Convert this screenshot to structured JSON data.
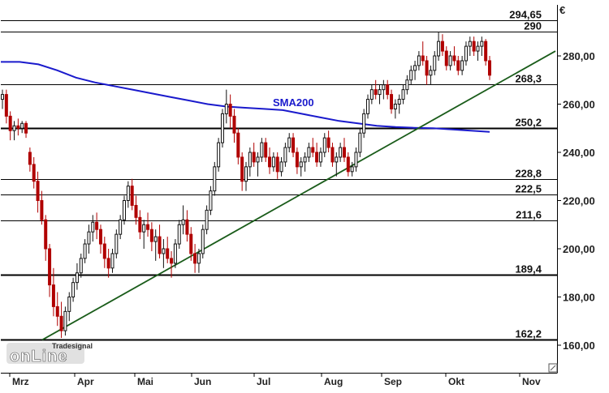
{
  "chart_data": {
    "type": "candlestick",
    "currency_label": "€",
    "ylim": [
      150,
      306
    ],
    "y_ticks": [
      160,
      180,
      200,
      220,
      240,
      260,
      280
    ],
    "y_tick_labels": [
      "160,00",
      "180,00",
      "200,00",
      "220,00",
      "240,00",
      "260,00",
      "280,00"
    ],
    "x_months": [
      "Mrz",
      "Apr",
      "Mai",
      "Jun",
      "Jul",
      "Aug",
      "Sep",
      "Okt",
      "Nov"
    ],
    "levels": [
      {
        "value": 294.65,
        "label": "294,65",
        "bold": false
      },
      {
        "value": 290,
        "label": "290",
        "bold": false
      },
      {
        "value": 268.3,
        "label": "268,3",
        "bold": false
      },
      {
        "value": 250.2,
        "label": "250,2",
        "bold": true
      },
      {
        "value": 228.8,
        "label": "228,8",
        "bold": false
      },
      {
        "value": 222.5,
        "label": "222,5",
        "bold": false
      },
      {
        "value": 211.6,
        "label": "211,6",
        "bold": false
      },
      {
        "value": 189.4,
        "label": "189,4",
        "bold": true
      },
      {
        "value": 162.2,
        "label": "162,2",
        "bold": true
      }
    ],
    "sma200": {
      "label": "SMA200",
      "color": "#1a1acc",
      "values": [
        277.5,
        277.5,
        276.5,
        274,
        271,
        269,
        267.5,
        266,
        264.5,
        263,
        261.5,
        260,
        259,
        258.5,
        258,
        257.5,
        256,
        254.5,
        253,
        252,
        251,
        250.5,
        250.2,
        250,
        249.5,
        249,
        248.5
      ]
    },
    "trendline": {
      "from_value": 162.2,
      "to_value": 282,
      "color": "#1a5c1a"
    },
    "candles": [
      [
        262,
        266,
        258,
        264
      ],
      [
        264,
        266,
        252,
        255
      ],
      [
        255,
        257,
        245,
        249
      ],
      [
        249,
        253,
        245,
        251
      ],
      [
        251,
        254,
        247,
        250
      ],
      [
        250,
        253,
        248,
        252
      ],
      [
        252,
        253,
        246,
        248
      ],
      [
        240,
        242,
        232,
        235
      ],
      [
        235,
        238,
        225,
        228
      ],
      [
        228,
        232,
        215,
        220
      ],
      [
        220,
        224,
        210,
        212
      ],
      [
        212,
        214,
        195,
        200
      ],
      [
        200,
        202,
        180,
        185
      ],
      [
        185,
        192,
        172,
        176
      ],
      [
        176,
        182,
        168,
        172
      ],
      [
        172,
        178,
        163,
        166
      ],
      [
        166,
        176,
        164,
        174
      ],
      [
        174,
        182,
        170,
        180
      ],
      [
        180,
        188,
        178,
        186
      ],
      [
        186,
        194,
        183,
        190
      ],
      [
        190,
        198,
        188,
        196
      ],
      [
        196,
        204,
        194,
        202
      ],
      [
        202,
        210,
        198,
        207
      ],
      [
        207,
        214,
        203,
        211
      ],
      [
        211,
        215,
        204,
        208
      ],
      [
        208,
        210,
        198,
        202
      ],
      [
        202,
        205,
        192,
        196
      ],
      [
        196,
        200,
        188,
        192
      ],
      [
        192,
        200,
        190,
        198
      ],
      [
        198,
        208,
        196,
        206
      ],
      [
        206,
        214,
        204,
        212
      ],
      [
        212,
        222,
        210,
        220
      ],
      [
        220,
        228,
        217,
        226
      ],
      [
        226,
        229,
        216,
        218
      ],
      [
        218,
        222,
        210,
        213
      ],
      [
        213,
        216,
        204,
        207
      ],
      [
        207,
        212,
        200,
        210
      ],
      [
        210,
        215,
        205,
        208
      ],
      [
        208,
        211,
        199,
        203
      ],
      [
        203,
        208,
        195,
        205
      ],
      [
        205,
        210,
        196,
        198
      ],
      [
        198,
        204,
        192,
        200
      ],
      [
        200,
        205,
        194,
        196
      ],
      [
        196,
        199,
        188,
        194
      ],
      [
        194,
        204,
        192,
        202
      ],
      [
        202,
        212,
        200,
        210
      ],
      [
        210,
        218,
        206,
        212
      ],
      [
        212,
        216,
        203,
        206
      ],
      [
        206,
        209,
        195,
        198
      ],
      [
        198,
        202,
        190,
        194
      ],
      [
        194,
        200,
        190,
        198
      ],
      [
        198,
        210,
        196,
        208
      ],
      [
        208,
        218,
        206,
        216
      ],
      [
        216,
        226,
        214,
        224
      ],
      [
        224,
        236,
        222,
        234
      ],
      [
        234,
        246,
        232,
        244
      ],
      [
        244,
        258,
        242,
        256
      ],
      [
        256,
        266,
        252,
        260
      ],
      [
        260,
        264,
        250,
        255
      ],
      [
        255,
        258,
        244,
        248
      ],
      [
        248,
        250,
        235,
        238
      ],
      [
        238,
        240,
        224,
        228
      ],
      [
        228,
        236,
        224,
        234
      ],
      [
        234,
        242,
        230,
        240
      ],
      [
        240,
        244,
        234,
        236
      ],
      [
        236,
        240,
        230,
        238
      ],
      [
        238,
        246,
        236,
        244
      ],
      [
        244,
        246,
        236,
        238
      ],
      [
        238,
        242,
        231,
        234
      ],
      [
        234,
        240,
        232,
        238
      ],
      [
        238,
        240,
        229,
        232
      ],
      [
        232,
        238,
        230,
        236
      ],
      [
        236,
        244,
        234,
        242
      ],
      [
        242,
        248,
        240,
        246
      ],
      [
        246,
        248,
        238,
        240
      ],
      [
        240,
        242,
        231,
        234
      ],
      [
        234,
        238,
        230,
        236
      ],
      [
        236,
        240,
        232,
        238
      ],
      [
        238,
        244,
        236,
        242
      ],
      [
        242,
        246,
        238,
        240
      ],
      [
        240,
        244,
        234,
        236
      ],
      [
        236,
        242,
        234,
        240
      ],
      [
        240,
        248,
        238,
        246
      ],
      [
        246,
        249,
        240,
        242
      ],
      [
        242,
        244,
        234,
        236
      ],
      [
        236,
        240,
        230,
        238
      ],
      [
        238,
        244,
        236,
        242
      ],
      [
        242,
        246,
        236,
        238
      ],
      [
        238,
        240,
        230,
        232
      ],
      [
        232,
        236,
        230,
        234
      ],
      [
        234,
        242,
        232,
        240
      ],
      [
        240,
        250,
        238,
        248
      ],
      [
        248,
        258,
        246,
        256
      ],
      [
        256,
        264,
        254,
        262
      ],
      [
        262,
        268,
        260,
        266
      ],
      [
        266,
        270,
        262,
        264
      ],
      [
        264,
        268,
        260,
        266
      ],
      [
        266,
        270,
        262,
        268
      ],
      [
        268,
        270,
        262,
        264
      ],
      [
        264,
        266,
        256,
        258
      ],
      [
        258,
        262,
        254,
        260
      ],
      [
        260,
        264,
        256,
        262
      ],
      [
        262,
        268,
        260,
        266
      ],
      [
        266,
        272,
        264,
        270
      ],
      [
        270,
        276,
        268,
        274
      ],
      [
        274,
        278,
        270,
        276
      ],
      [
        276,
        282,
        274,
        280
      ],
      [
        280,
        286,
        276,
        278
      ],
      [
        278,
        280,
        268,
        272
      ],
      [
        272,
        276,
        268,
        274
      ],
      [
        274,
        282,
        272,
        280
      ],
      [
        280,
        290,
        278,
        286
      ],
      [
        286,
        289,
        280,
        282
      ],
      [
        282,
        284,
        274,
        276
      ],
      [
        276,
        282,
        274,
        280
      ],
      [
        280,
        284,
        276,
        278
      ],
      [
        278,
        280,
        272,
        274
      ],
      [
        274,
        280,
        272,
        278
      ],
      [
        278,
        286,
        276,
        284
      ],
      [
        284,
        288,
        280,
        286
      ],
      [
        286,
        288,
        280,
        282
      ],
      [
        282,
        286,
        278,
        284
      ],
      [
        284,
        288,
        280,
        286
      ],
      [
        286,
        287,
        276,
        278
      ],
      [
        278,
        280,
        270,
        272
      ]
    ]
  },
  "logo": {
    "brand_small": "Tradesignal",
    "brand_large": "onLine"
  }
}
